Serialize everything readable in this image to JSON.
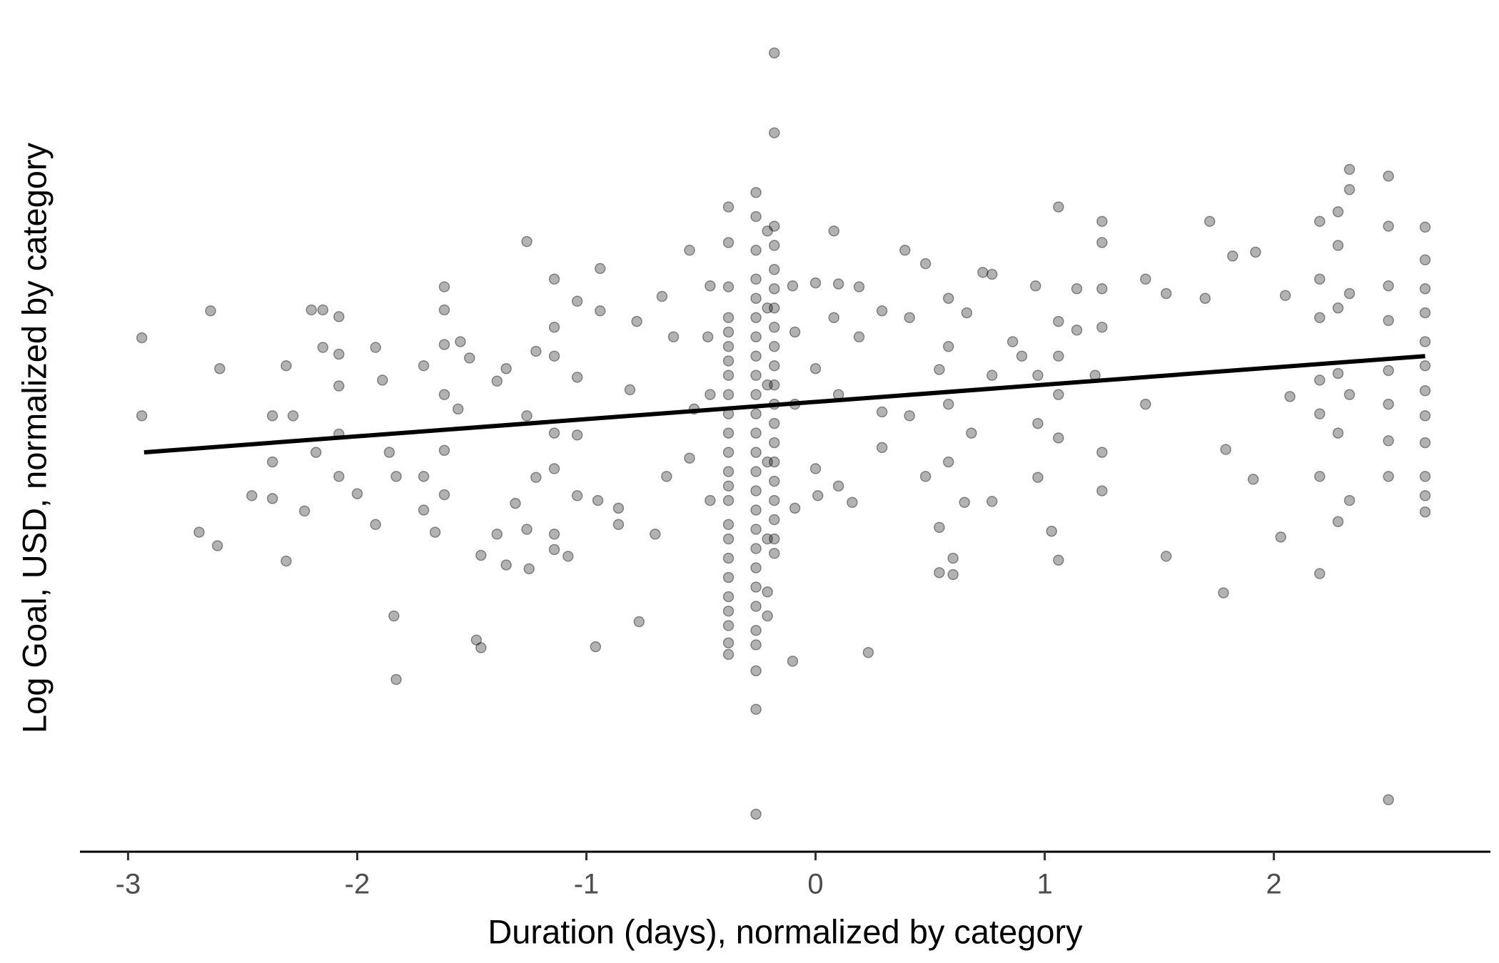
{
  "chart_data": {
    "type": "scatter",
    "x_label": "Duration (days), normalized by category",
    "y_label": "Log Goal, USD, normalized by category",
    "color": "#000000",
    "xlim": [
      -3.21,
      2.945
    ],
    "ylim": [
      -4.65,
      3.9
    ],
    "xticks": [
      -3,
      -2,
      -1,
      0,
      1,
      2
    ],
    "x": [
      -2.94,
      -2.94,
      -2.64,
      -2.6,
      -2.69,
      -2.61,
      -2.46,
      -2.37,
      -2.37,
      -2.37,
      -2.31,
      -2.31,
      -2.28,
      -2.23,
      -2.2,
      -2.15,
      -2.15,
      -2.18,
      -2.08,
      -2.08,
      -2.08,
      -2.08,
      -2.08,
      -2.0,
      -1.92,
      -1.89,
      -1.92,
      -1.84,
      -1.83,
      -1.86,
      -1.83,
      -1.71,
      -1.71,
      -1.71,
      -1.66,
      -1.62,
      -1.62,
      -1.62,
      -1.62,
      -1.62,
      -1.62,
      -1.56,
      -1.55,
      -1.51,
      -1.46,
      -1.48,
      -1.46,
      -1.39,
      -1.35,
      -1.39,
      -1.35,
      -1.31,
      -1.26,
      -1.26,
      -1.26,
      -1.25,
      -1.22,
      -1.22,
      -1.14,
      -1.14,
      -1.14,
      -1.14,
      -1.14,
      -1.14,
      -1.14,
      -1.08,
      -1.04,
      -1.04,
      -1.04,
      -1.04,
      -0.96,
      -0.94,
      -0.94,
      -0.95,
      -0.86,
      -0.86,
      -0.81,
      -0.77,
      -0.78,
      -0.7,
      -0.67,
      -0.65,
      -0.62,
      -0.55,
      -0.55,
      -0.53,
      -0.47,
      -0.46,
      -0.46,
      -0.46,
      -0.38,
      -0.38,
      -0.38,
      -0.38,
      -0.38,
      -0.38,
      -0.38,
      -0.38,
      -0.38,
      -0.38,
      -0.38,
      -0.38,
      -0.38,
      -0.38,
      -0.38,
      -0.38,
      -0.38,
      -0.38,
      -0.38,
      -0.38,
      -0.38,
      -0.38,
      -0.38,
      -0.38,
      -0.26,
      -0.26,
      -0.26,
      -0.26,
      -0.26,
      -0.26,
      -0.26,
      -0.26,
      -0.26,
      -0.26,
      -0.26,
      -0.26,
      -0.26,
      -0.26,
      -0.26,
      -0.26,
      -0.26,
      -0.26,
      -0.26,
      -0.26,
      -0.26,
      -0.26,
      -0.26,
      -0.26,
      -0.26,
      -0.26,
      -0.18,
      -0.18,
      -0.18,
      -0.18,
      -0.18,
      -0.18,
      -0.18,
      -0.18,
      -0.18,
      -0.18,
      -0.18,
      -0.18,
      -0.18,
      -0.18,
      -0.18,
      -0.18,
      -0.18,
      -0.18,
      -0.18,
      -0.18,
      -0.21,
      -0.21,
      -0.21,
      -0.21,
      -0.21,
      -0.21,
      -0.21,
      -0.1,
      -0.09,
      -0.09,
      -0.09,
      -0.1,
      0,
      0,
      0,
      0.01,
      0.08,
      0.08,
      0.1,
      0.1,
      0.1,
      0.16,
      0.19,
      0.19,
      0.23,
      0.29,
      0.29,
      0.29,
      0.39,
      0.41,
      0.41,
      0.48,
      0.48,
      0.54,
      0.54,
      0.54,
      0.58,
      0.58,
      0.58,
      0.58,
      0.6,
      0.6,
      0.65,
      0.66,
      0.68,
      0.73,
      0.77,
      0.77,
      0.77,
      0.86,
      0.9,
      0.96,
      0.97,
      0.97,
      0.97,
      1.03,
      1.06,
      1.06,
      1.06,
      1.06,
      1.06,
      1.06,
      1.14,
      1.14,
      1.22,
      1.25,
      1.25,
      1.25,
      1.25,
      1.25,
      1.25,
      1.44,
      1.44,
      1.53,
      1.53,
      1.72,
      1.7,
      1.79,
      1.78,
      1.82,
      1.92,
      1.91,
      2.03,
      2.05,
      2.07,
      2.2,
      2.2,
      2.2,
      2.2,
      2.2,
      2.2,
      2.2,
      2.28,
      2.28,
      2.28,
      2.28,
      2.28,
      2.28,
      2.33,
      2.33,
      2.33,
      2.33,
      2.33,
      2.5,
      2.5,
      2.5,
      2.5,
      2.5,
      2.5,
      2.5,
      2.5,
      2.5,
      2.66,
      2.66,
      2.66,
      2.66,
      2.66,
      2.66,
      2.66,
      2.66,
      2.66,
      2.66,
      2.66,
      2.66
    ],
    "y": [
      0.69,
      -0.12,
      0.97,
      0.37,
      -1.33,
      -1.47,
      -0.95,
      -0.12,
      -0.6,
      -0.98,
      0.4,
      -1.63,
      -0.12,
      -1.11,
      0.98,
      0.98,
      0.59,
      -0.5,
      0.91,
      0.52,
      0.19,
      -0.31,
      -0.75,
      -0.93,
      0.59,
      0.25,
      -1.25,
      -2.2,
      -2.86,
      -0.5,
      -0.75,
      0.4,
      -0.75,
      -1.1,
      -1.33,
      1.22,
      0.98,
      0.62,
      0.1,
      -0.48,
      -0.94,
      -0.05,
      0.65,
      0.48,
      -1.57,
      -2.45,
      -2.53,
      0.24,
      0.37,
      -1.35,
      -1.67,
      -1.03,
      1.69,
      -0.12,
      -1.3,
      -1.71,
      0.55,
      -0.76,
      1.3,
      0.8,
      0.5,
      -0.3,
      -0.67,
      -1.35,
      -1.51,
      -1.58,
      1.07,
      0.28,
      -0.32,
      -0.95,
      -2.52,
      1.41,
      0.97,
      -1.0,
      -1.25,
      -1.08,
      0.15,
      -2.26,
      0.86,
      -1.35,
      1.12,
      -0.75,
      0.7,
      1.6,
      -0.56,
      -0.05,
      0.7,
      1.23,
      0.1,
      -1.0,
      2.05,
      1.68,
      1.22,
      0.9,
      0.75,
      0.6,
      0.45,
      0.3,
      0.1,
      -0.1,
      -0.3,
      -0.5,
      -0.7,
      -0.85,
      -1.0,
      -1.25,
      -1.4,
      -1.6,
      -1.8,
      -2.0,
      -2.15,
      -2.3,
      -2.48,
      -2.6,
      2.2,
      1.95,
      1.6,
      1.3,
      1.1,
      0.9,
      0.7,
      0.5,
      0.3,
      0.1,
      -0.1,
      -0.3,
      -0.5,
      -0.7,
      -0.9,
      -1.1,
      -1.3,
      -1.5,
      -1.7,
      -1.9,
      -2.1,
      -2.35,
      -2.5,
      -2.77,
      -3.17,
      -4.26,
      3.65,
      2.82,
      1.85,
      1.65,
      1.4,
      1.2,
      1.0,
      0.8,
      0.6,
      0.4,
      0.2,
      0.0,
      -0.2,
      -0.4,
      -0.6,
      -0.8,
      -1.0,
      -1.2,
      -1.4,
      -1.55,
      1.8,
      1.0,
      0.2,
      -0.6,
      -1.4,
      -1.95,
      -2.2,
      1.23,
      0.75,
      0.0,
      -1.08,
      -2.67,
      1.26,
      0.37,
      -0.67,
      -0.95,
      1.8,
      0.9,
      1.25,
      0.1,
      -0.85,
      -1.02,
      1.22,
      0.7,
      -2.58,
      0.97,
      -0.08,
      -0.45,
      1.6,
      0.9,
      -0.12,
      1.46,
      -0.75,
      0.36,
      -1.28,
      -1.75,
      1.1,
      0.6,
      0.0,
      -0.6,
      -1.6,
      -1.77,
      -1.02,
      0.95,
      -0.3,
      1.37,
      1.35,
      0.3,
      -1.01,
      0.65,
      0.5,
      1.23,
      0.3,
      -0.2,
      -0.76,
      -1.32,
      2.05,
      0.86,
      0.5,
      0.1,
      -0.35,
      -1.62,
      1.2,
      0.77,
      0.3,
      1.9,
      1.68,
      1.2,
      0.8,
      -0.5,
      -0.9,
      1.3,
      0.0,
      1.15,
      -1.58,
      1.9,
      1.1,
      -0.47,
      -1.96,
      1.54,
      1.58,
      -0.78,
      -1.38,
      1.13,
      0.08,
      1.9,
      1.3,
      0.9,
      0.25,
      -0.1,
      -0.75,
      -1.76,
      2.0,
      1.65,
      1.0,
      0.32,
      -0.3,
      -1.22,
      2.44,
      2.23,
      1.15,
      0.1,
      -1.0,
      2.37,
      1.85,
      1.23,
      0.87,
      0.35,
      0.0,
      -0.38,
      -0.75,
      -4.11,
      1.84,
      1.5,
      1.2,
      0.95,
      0.65,
      0.4,
      0.14,
      -0.12,
      -0.4,
      -0.75,
      -0.95,
      -1.12
    ],
    "fit": {
      "x": [
        -2.93,
        2.66
      ],
      "y": [
        -0.5,
        0.5
      ]
    }
  }
}
